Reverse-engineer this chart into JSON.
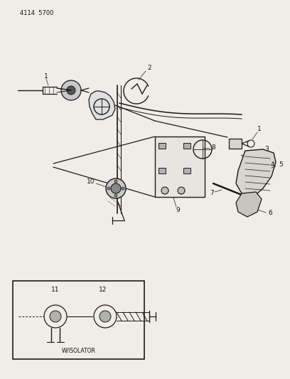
{
  "title": "4114  5700",
  "background_color": "#f0ede8",
  "line_color": "#1a1a1a",
  "text_color": "#111111",
  "fig_width": 4.08,
  "fig_height": 5.33,
  "dpi": 100
}
